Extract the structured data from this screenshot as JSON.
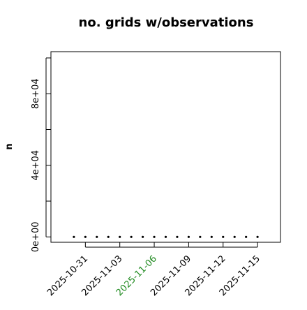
{
  "chart_data": {
    "type": "scatter",
    "title": "no. grids w/observations",
    "ylabel": "n",
    "x": [
      "2025-10-30",
      "2025-10-31",
      "2025-11-01",
      "2025-11-02",
      "2025-11-03",
      "2025-11-04",
      "2025-11-05",
      "2025-11-06",
      "2025-11-07",
      "2025-11-08",
      "2025-11-09",
      "2025-11-10",
      "2025-11-11",
      "2025-11-12",
      "2025-11-13",
      "2025-11-14",
      "2025-11-15"
    ],
    "values": [
      0,
      0,
      0,
      0,
      0,
      0,
      0,
      0,
      0,
      0,
      0,
      0,
      0,
      0,
      0,
      0,
      0
    ],
    "color": "#000000",
    "xlim": [
      "2025-10-28",
      "2025-11-17"
    ],
    "xticks": [
      "2025-10-31",
      "2025-11-03",
      "2025-11-06",
      "2025-11-09",
      "2025-11-12",
      "2025-11-15"
    ],
    "xtick_colors": [
      "#000000",
      "#000000",
      "#228b22",
      "#000000",
      "#000000",
      "#000000"
    ],
    "ylim": [
      -3000,
      103500
    ],
    "yticks": [
      {
        "value": 0,
        "label": "0e+00"
      },
      {
        "value": 20000,
        "label": null
      },
      {
        "value": 40000,
        "label": "4e+04"
      },
      {
        "value": 60000,
        "label": null
      },
      {
        "value": 80000,
        "label": "8e+04"
      },
      {
        "value": 100000,
        "label": null
      }
    ]
  }
}
